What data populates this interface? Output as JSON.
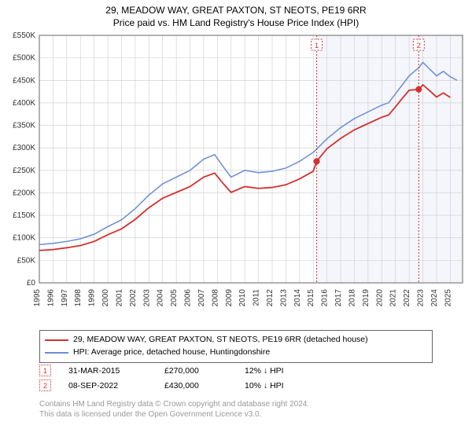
{
  "title_line1": "29, MEADOW WAY, GREAT PAXTON, ST NEOTS, PE19 6RR",
  "title_line2": "Price paid vs. HM Land Registry's House Price Index (HPI)",
  "title_fontsize": 12,
  "chart": {
    "type": "line",
    "plot_bg": "#ffffff",
    "shade_bg": "#f4f6fb",
    "grid_color": "#cccccc",
    "axis_color": "#666666",
    "ylim": [
      0,
      550000
    ],
    "ytick_step": 50000,
    "ylabels": [
      "£0",
      "£50K",
      "£100K",
      "£150K",
      "£200K",
      "£250K",
      "£300K",
      "£350K",
      "£400K",
      "£450K",
      "£500K",
      "£550K"
    ],
    "xlim": [
      1995,
      2025.9
    ],
    "xticks": [
      1995,
      1996,
      1997,
      1998,
      1999,
      2000,
      2001,
      2002,
      2003,
      2004,
      2005,
      2006,
      2007,
      2008,
      2009,
      2010,
      2011,
      2012,
      2013,
      2014,
      2015,
      2016,
      2017,
      2018,
      2019,
      2020,
      2021,
      2022,
      2023,
      2024,
      2025
    ],
    "label_fontsize": 10,
    "shade_start_year": 2015.25,
    "series": [
      {
        "name": "hpi",
        "color": "#6b8dd6",
        "width": 1.5,
        "points": [
          [
            1995,
            85000
          ],
          [
            1996,
            88000
          ],
          [
            1997,
            92000
          ],
          [
            1998,
            98000
          ],
          [
            1999,
            108000
          ],
          [
            2000,
            125000
          ],
          [
            2001,
            140000
          ],
          [
            2002,
            165000
          ],
          [
            2003,
            195000
          ],
          [
            2004,
            220000
          ],
          [
            2005,
            235000
          ],
          [
            2006,
            250000
          ],
          [
            2007,
            275000
          ],
          [
            2007.8,
            285000
          ],
          [
            2008.5,
            255000
          ],
          [
            2009,
            235000
          ],
          [
            2010,
            250000
          ],
          [
            2011,
            245000
          ],
          [
            2012,
            248000
          ],
          [
            2013,
            255000
          ],
          [
            2014,
            270000
          ],
          [
            2015,
            290000
          ],
          [
            2016,
            320000
          ],
          [
            2017,
            345000
          ],
          [
            2018,
            365000
          ],
          [
            2019,
            380000
          ],
          [
            2020,
            395000
          ],
          [
            2020.5,
            400000
          ],
          [
            2021,
            420000
          ],
          [
            2021.5,
            440000
          ],
          [
            2022,
            460000
          ],
          [
            2022.7,
            478000
          ],
          [
            2023,
            490000
          ],
          [
            2023.5,
            475000
          ],
          [
            2024,
            460000
          ],
          [
            2024.5,
            470000
          ],
          [
            2025,
            458000
          ],
          [
            2025.5,
            450000
          ]
        ]
      },
      {
        "name": "property",
        "color": "#d43030",
        "width": 1.8,
        "points": [
          [
            1995,
            72000
          ],
          [
            1996,
            74000
          ],
          [
            1997,
            78000
          ],
          [
            1998,
            83000
          ],
          [
            1999,
            92000
          ],
          [
            2000,
            107000
          ],
          [
            2001,
            120000
          ],
          [
            2002,
            141000
          ],
          [
            2003,
            167000
          ],
          [
            2004,
            188000
          ],
          [
            2005,
            201000
          ],
          [
            2006,
            214000
          ],
          [
            2007,
            235000
          ],
          [
            2007.8,
            244000
          ],
          [
            2008.5,
            218000
          ],
          [
            2009,
            201000
          ],
          [
            2010,
            214000
          ],
          [
            2011,
            210000
          ],
          [
            2012,
            212000
          ],
          [
            2013,
            218000
          ],
          [
            2014,
            231000
          ],
          [
            2015,
            248000
          ],
          [
            2015.25,
            270000
          ],
          [
            2016,
            298000
          ],
          [
            2017,
            321000
          ],
          [
            2018,
            340000
          ],
          [
            2019,
            354000
          ],
          [
            2020,
            368000
          ],
          [
            2020.5,
            373000
          ],
          [
            2021,
            391000
          ],
          [
            2021.5,
            410000
          ],
          [
            2022,
            428000
          ],
          [
            2022.7,
            430000
          ],
          [
            2023,
            440000
          ],
          [
            2023.5,
            427000
          ],
          [
            2024,
            413000
          ],
          [
            2024.5,
            422000
          ],
          [
            2025,
            412000
          ]
        ]
      }
    ],
    "markers": [
      {
        "n": 1,
        "year": 2015.25,
        "value": 270000,
        "color": "#d43030"
      },
      {
        "n": 2,
        "year": 2022.7,
        "value": 430000,
        "color": "#d43030"
      }
    ]
  },
  "legend": {
    "items": [
      {
        "color": "#d43030",
        "label": "29, MEADOW WAY, GREAT PAXTON, ST NEOTS, PE19 6RR (detached house)"
      },
      {
        "color": "#6b8dd6",
        "label": "HPI: Average price, detached house, Huntingdonshire"
      }
    ]
  },
  "sales": [
    {
      "n": "1",
      "date": "31-MAR-2015",
      "price": "£270,000",
      "diff": "12% ↓ HPI",
      "marker_color": "#d43030"
    },
    {
      "n": "2",
      "date": "08-SEP-2022",
      "price": "£430,000",
      "diff": "10% ↓ HPI",
      "marker_color": "#d43030"
    }
  ],
  "footer_line1": "Contains HM Land Registry data © Crown copyright and database right 2024.",
  "footer_line2": "This data is licensed under the Open Government Licence v3.0."
}
